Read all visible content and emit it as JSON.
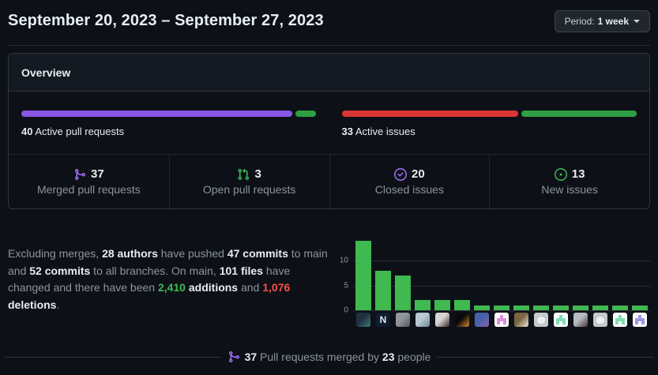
{
  "header": {
    "title": "September 20, 2023 – September 27, 2023",
    "period_label": "Period:",
    "period_value": "1 week"
  },
  "overview": {
    "title": "Overview",
    "activity_bars": [
      {
        "count": "40",
        "label": "Active pull requests",
        "segments": [
          {
            "name": "merged",
            "pct": 92.5,
            "color": "#8957e5"
          },
          {
            "name": "open",
            "pct": 7.5,
            "color": "#2ea043"
          }
        ]
      },
      {
        "count": "33",
        "label": "Active issues",
        "segments": [
          {
            "name": "closed",
            "pct": 60.5,
            "color": "#da3633"
          },
          {
            "name": "new",
            "pct": 39.5,
            "color": "#2ea043"
          }
        ]
      }
    ],
    "stats": [
      {
        "icon": "git-merge-icon",
        "icon_color": "#a371f7",
        "value": "37",
        "label": "Merged pull requests"
      },
      {
        "icon": "git-pull-request-icon",
        "icon_color": "#3fb950",
        "value": "3",
        "label": "Open pull requests"
      },
      {
        "icon": "issue-closed-icon",
        "icon_color": "#a371f7",
        "value": "20",
        "label": "Closed issues"
      },
      {
        "icon": "issue-opened-icon",
        "icon_color": "#3fb950",
        "value": "13",
        "label": "New issues"
      }
    ]
  },
  "summary": {
    "segments": [
      {
        "text": "Excluding merges, ",
        "style": "muted"
      },
      {
        "text": "28 authors",
        "style": "bold"
      },
      {
        "text": " have pushed ",
        "style": "muted"
      },
      {
        "text": "47 commits",
        "style": "bold"
      },
      {
        "text": " to main and ",
        "style": "muted"
      },
      {
        "text": "52 commits",
        "style": "bold"
      },
      {
        "text": " to all branches. On main, ",
        "style": "muted"
      },
      {
        "text": "101 files",
        "style": "bold"
      },
      {
        "text": " have changed and there have been ",
        "style": "muted"
      },
      {
        "text": "2,410",
        "style": "green"
      },
      {
        "text": " ",
        "style": "muted"
      },
      {
        "text": "additions",
        "style": "bold"
      },
      {
        "text": " and ",
        "style": "muted"
      },
      {
        "text": "1,076",
        "style": "red"
      },
      {
        "text": " ",
        "style": "muted"
      },
      {
        "text": "deletions",
        "style": "bold"
      },
      {
        "text": ".",
        "style": "muted"
      }
    ]
  },
  "chart_data": {
    "type": "bar",
    "title": "",
    "xlabel": "",
    "ylabel": "",
    "yticks": [
      0,
      5,
      10
    ],
    "ylim": [
      0,
      15
    ],
    "grid": true,
    "bar_color": "#3fb950",
    "values": [
      14,
      8,
      7,
      2,
      2,
      2,
      1,
      1,
      1,
      1,
      1,
      1,
      1,
      1,
      1
    ],
    "categories": [
      "contributor-1",
      "contributor-2",
      "contributor-3",
      "contributor-4",
      "contributor-5",
      "contributor-6",
      "contributor-7",
      "contributor-8",
      "contributor-9",
      "contributor-10",
      "contributor-11",
      "contributor-12",
      "contributor-13",
      "contributor-14",
      "contributor-15"
    ],
    "avatars": [
      {
        "kind": "photo",
        "colors": [
          "#203040",
          "#3f7d74"
        ]
      },
      {
        "kind": "logo-n",
        "colors": [
          "#101b2e",
          "#e3e9f3"
        ]
      },
      {
        "kind": "photo",
        "colors": [
          "#8f969c",
          "#50565c"
        ]
      },
      {
        "kind": "photo",
        "colors": [
          "#b8c7d3",
          "#6e869a"
        ]
      },
      {
        "kind": "photo",
        "colors": [
          "#d7d5d2",
          "#35262c"
        ]
      },
      {
        "kind": "photo",
        "colors": [
          "#0a0a0c",
          "#d98a2b"
        ]
      },
      {
        "kind": "photo",
        "colors": [
          "#4563a8",
          "#8a5fb0"
        ]
      },
      {
        "kind": "identicon",
        "colors": [
          "#ffffff",
          "#df8fdc"
        ]
      },
      {
        "kind": "photo",
        "colors": [
          "#7a6542",
          "#efe7d6"
        ]
      },
      {
        "kind": "octocat",
        "colors": [
          "#c6cacd",
          "#eceef0"
        ]
      },
      {
        "kind": "identicon",
        "colors": [
          "#ffffff",
          "#7fdfb2"
        ]
      },
      {
        "kind": "photo",
        "colors": [
          "#b4bcc2",
          "#46383a"
        ]
      },
      {
        "kind": "octocat",
        "colors": [
          "#c6cacd",
          "#eceef0"
        ]
      },
      {
        "kind": "identicon",
        "colors": [
          "#ffffff",
          "#7fdfb2"
        ]
      },
      {
        "kind": "identicon",
        "colors": [
          "#ffffff",
          "#a295e3"
        ]
      }
    ]
  },
  "footer": {
    "icon_color": "#a371f7",
    "segments": [
      {
        "text": "37",
        "style": "bold"
      },
      {
        "text": " Pull requests merged by ",
        "style": "muted"
      },
      {
        "text": "23",
        "style": "bold"
      },
      {
        "text": " people",
        "style": "muted"
      }
    ]
  }
}
